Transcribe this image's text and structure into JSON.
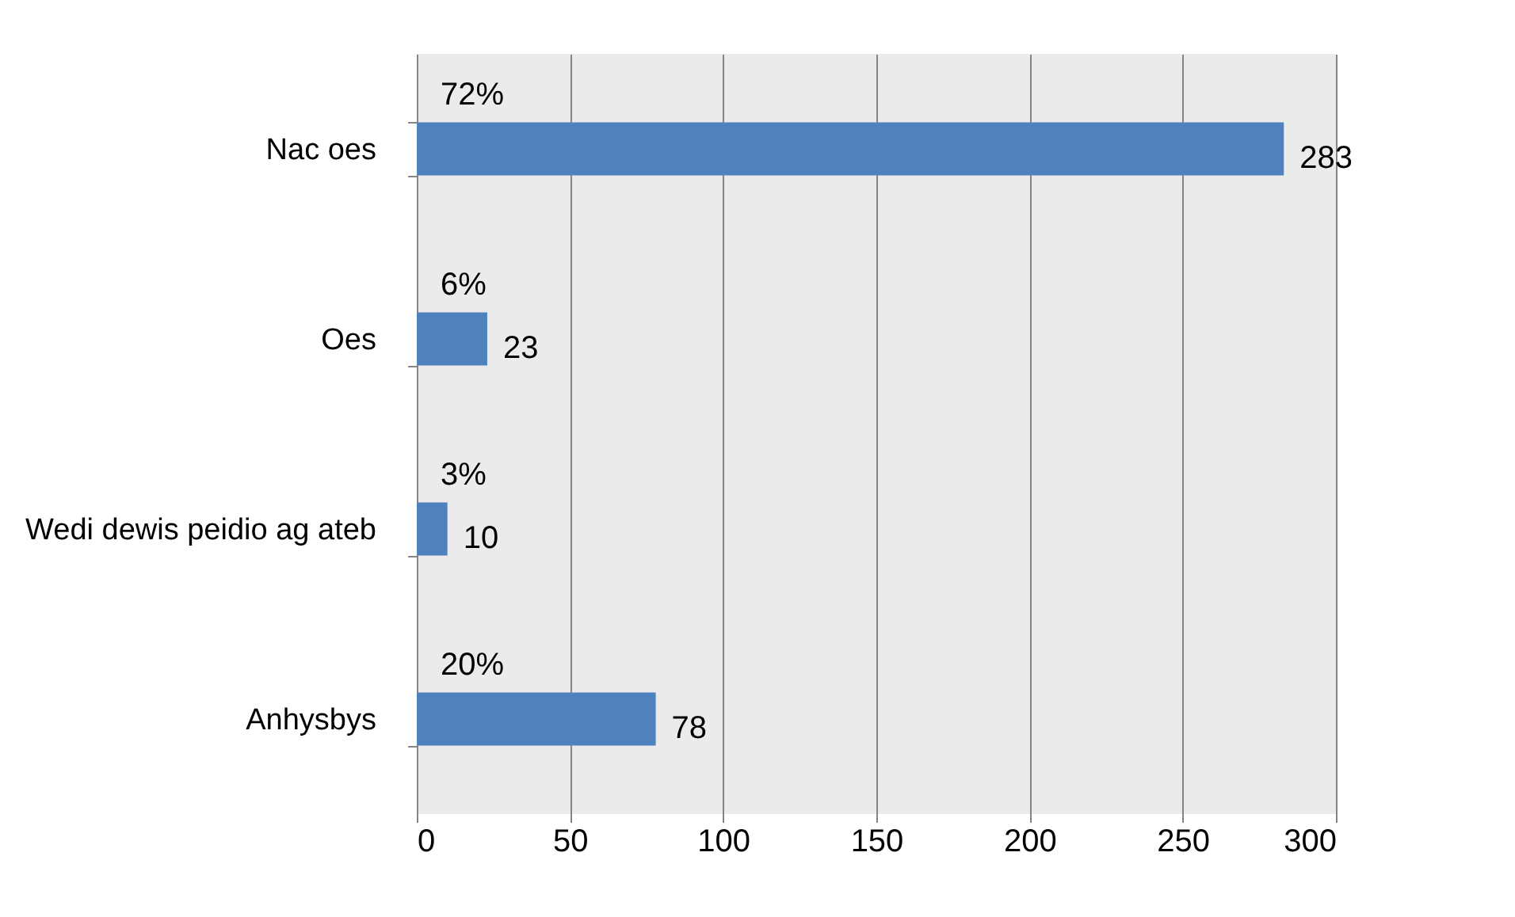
{
  "chart_data": {
    "type": "bar",
    "orientation": "horizontal",
    "categories": [
      "Nac oes",
      "Oes",
      "Wedi dewis peidio ag ateb",
      "Anhysbys"
    ],
    "values": [
      283,
      23,
      10,
      78
    ],
    "color": "#4f81bd",
    "xlim": [
      0,
      300
    ],
    "xticks": [
      0,
      50,
      100,
      150,
      200,
      250,
      300
    ],
    "grid": "x",
    "data_labels": true,
    "annotations": [
      "72%",
      "6%",
      "3%",
      "20%"
    ]
  }
}
